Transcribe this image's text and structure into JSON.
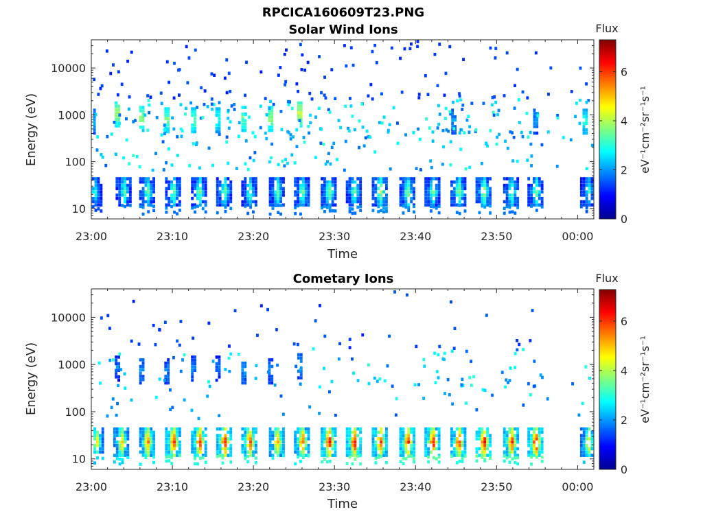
{
  "figure_title": "RPCICA160609T23.PNG",
  "colormap": [
    "#00008f",
    "#0000ff",
    "#0080ff",
    "#00ffff",
    "#80ff80",
    "#ffff00",
    "#ff8000",
    "#ff0000",
    "#800000"
  ],
  "chart_data": [
    {
      "type": "heatmap",
      "title": "Solar Wind Ions",
      "xlabel": "Time",
      "ylabel": "Energy (eV)",
      "xlim": [
        "23:00",
        "00:02"
      ],
      "x_ticks": [
        "23:00",
        "23:10",
        "23:20",
        "23:30",
        "23:40",
        "23:50",
        "00:00"
      ],
      "y_scale": "log",
      "ylim": [
        6,
        40000
      ],
      "y_ticks": [
        "10",
        "100",
        "1000",
        "10000"
      ],
      "colorbar": {
        "label": "Flux",
        "unit": "eV⁻¹cm⁻²sr⁻¹s⁻¹",
        "ticks": [
          "0",
          "2",
          "4",
          "6"
        ],
        "range": [
          0,
          7.3
        ]
      },
      "bursts_high_energy": [
        {
          "time_min": 0.2,
          "energy_eV": 700,
          "flux": 2.2
        },
        {
          "time_min": 3.2,
          "energy_eV": 1000,
          "flux": 4.0
        },
        {
          "time_min": 6.2,
          "energy_eV": 800,
          "flux": 3.8
        },
        {
          "time_min": 9.3,
          "energy_eV": 750,
          "flux": 3.6
        },
        {
          "time_min": 12.6,
          "energy_eV": 750,
          "flux": 3.5
        },
        {
          "time_min": 15.6,
          "energy_eV": 750,
          "flux": 3.0
        },
        {
          "time_min": 18.8,
          "energy_eV": 800,
          "flux": 3.6
        },
        {
          "time_min": 22.1,
          "energy_eV": 800,
          "flux": 3.8
        },
        {
          "time_min": 25.7,
          "energy_eV": 1000,
          "flux": 4.2
        },
        {
          "time_min": 44.7,
          "energy_eV": 700,
          "flux": 2.0
        },
        {
          "time_min": 54.8,
          "energy_eV": 700,
          "flux": 2.0
        },
        {
          "time_min": 60.9,
          "energy_eV": 700,
          "flux": 3.0
        }
      ],
      "bursts_low_energy": [
        {
          "time_min": 0.3,
          "flux": 3.0
        },
        {
          "time_min": 3.9,
          "flux": 3.6
        },
        {
          "time_min": 6.8,
          "flux": 3.8
        },
        {
          "time_min": 10.0,
          "flux": 3.8
        },
        {
          "time_min": 13.2,
          "flux": 3.8
        },
        {
          "time_min": 16.3,
          "flux": 3.8
        },
        {
          "time_min": 19.4,
          "flux": 3.6
        },
        {
          "time_min": 22.8,
          "flux": 3.8
        },
        {
          "time_min": 25.9,
          "flux": 3.8
        },
        {
          "time_min": 29.2,
          "flux": 4.0
        },
        {
          "time_min": 32.3,
          "flux": 3.8
        },
        {
          "time_min": 35.5,
          "flux": 4.2
        },
        {
          "time_min": 38.9,
          "flux": 4.0
        },
        {
          "time_min": 42.0,
          "flux": 3.8
        },
        {
          "time_min": 45.2,
          "flux": 4.0
        },
        {
          "time_min": 48.3,
          "flux": 4.2
        },
        {
          "time_min": 51.7,
          "flux": 3.8
        },
        {
          "time_min": 54.7,
          "flux": 3.8
        },
        {
          "time_min": 61.2,
          "flux": 3.2
        }
      ],
      "data_gap_minutes": [
        55.5,
        60.0
      ]
    },
    {
      "type": "heatmap",
      "title": "Cometary Ions",
      "xlabel": "Time",
      "ylabel": "Energy (eV)",
      "xlim": [
        "23:00",
        "00:02"
      ],
      "x_ticks": [
        "23:00",
        "23:10",
        "23:20",
        "23:30",
        "23:40",
        "23:50",
        "00:00"
      ],
      "y_scale": "log",
      "ylim": [
        6,
        40000
      ],
      "y_ticks": [
        "10",
        "100",
        "1000",
        "10000"
      ],
      "colorbar": {
        "label": "Flux",
        "unit": "eV⁻¹cm⁻²sr⁻¹s⁻¹",
        "ticks": [
          "0",
          "2",
          "4",
          "6"
        ],
        "range": [
          0,
          7.3
        ]
      },
      "bursts_high_energy": [
        {
          "time_min": 3.2,
          "energy_eV": 800,
          "flux": 1.6
        },
        {
          "time_min": 6.2,
          "energy_eV": 700,
          "flux": 2.0
        },
        {
          "time_min": 9.3,
          "energy_eV": 700,
          "flux": 1.8
        },
        {
          "time_min": 12.6,
          "energy_eV": 800,
          "flux": 1.8
        },
        {
          "time_min": 15.6,
          "energy_eV": 800,
          "flux": 1.6
        },
        {
          "time_min": 18.8,
          "energy_eV": 700,
          "flux": 2.0
        },
        {
          "time_min": 22.1,
          "energy_eV": 700,
          "flux": 1.8
        },
        {
          "time_min": 25.7,
          "energy_eV": 900,
          "flux": 2.2
        }
      ],
      "bursts_low_energy": [
        {
          "time_min": 0.5,
          "flux": 5.0
        },
        {
          "time_min": 3.6,
          "flux": 5.4
        },
        {
          "time_min": 6.8,
          "flux": 6.0
        },
        {
          "time_min": 10.0,
          "flux": 6.6
        },
        {
          "time_min": 13.2,
          "flux": 6.6
        },
        {
          "time_min": 16.3,
          "flux": 6.8
        },
        {
          "time_min": 19.4,
          "flux": 6.4
        },
        {
          "time_min": 22.8,
          "flux": 5.8
        },
        {
          "time_min": 25.9,
          "flux": 6.2
        },
        {
          "time_min": 29.2,
          "flux": 6.8
        },
        {
          "time_min": 32.3,
          "flux": 7.0
        },
        {
          "time_min": 35.5,
          "flux": 6.6
        },
        {
          "time_min": 38.9,
          "flux": 6.8
        },
        {
          "time_min": 42.0,
          "flux": 6.8
        },
        {
          "time_min": 45.2,
          "flux": 6.6
        },
        {
          "time_min": 48.3,
          "flux": 7.0
        },
        {
          "time_min": 51.7,
          "flux": 6.6
        },
        {
          "time_min": 54.7,
          "flux": 7.0
        },
        {
          "time_min": 61.2,
          "flux": 5.2
        }
      ],
      "data_gap_minutes": [
        55.5,
        60.0
      ]
    }
  ]
}
